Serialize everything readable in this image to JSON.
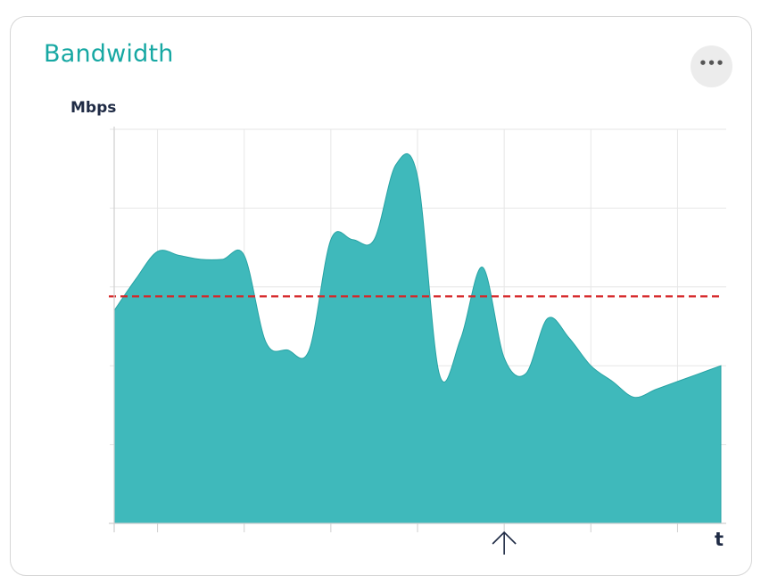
{
  "card": {
    "title": "Bandwidth"
  },
  "menu": {
    "icon": "more-horizontal-icon",
    "glyph": "•••"
  },
  "colors": {
    "area": "#3fb9bb",
    "area_stroke": "#27a3a4",
    "threshold": "#d62728",
    "title": "#17a8a3",
    "axis_text": "#1f2b45"
  },
  "marker": {
    "icon": "arrow-up-icon",
    "x": 9
  },
  "chart_data": {
    "type": "area",
    "title": "",
    "xlabel": "t",
    "ylabel": "Mbps",
    "x": [
      0,
      0.5,
      1,
      1.5,
      2,
      2.5,
      3,
      3.5,
      4,
      4.5,
      5,
      5.5,
      6,
      6.5,
      7,
      7.5,
      8,
      8.5,
      9,
      9.5,
      10,
      10.5,
      11,
      11.5,
      12,
      12.5,
      13,
      13.5,
      14
    ],
    "values": [
      2.7,
      3.1,
      3.45,
      3.4,
      3.35,
      3.35,
      3.4,
      2.3,
      2.2,
      2.2,
      3.6,
      3.6,
      3.6,
      4.55,
      4.4,
      1.9,
      2.35,
      3.25,
      2.1,
      1.9,
      2.6,
      2.35,
      2.0,
      1.8,
      1.6,
      1.7,
      1.8,
      1.9,
      2.0
    ],
    "threshold": 2.88,
    "xlim": [
      0,
      14
    ],
    "ylim": [
      0,
      5
    ],
    "grid": true
  }
}
